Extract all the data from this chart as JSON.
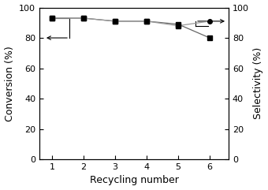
{
  "x": [
    1,
    2,
    3,
    4,
    5,
    6
  ],
  "conversion": [
    93,
    93,
    91,
    91,
    89,
    80
  ],
  "selectivity": [
    93,
    93,
    91,
    91,
    88,
    91
  ],
  "xlabel": "Recycling number",
  "ylabel_left": "Conversion (%)",
  "ylabel_right": "Selectivity (%)",
  "ylim": [
    0,
    100
  ],
  "xlim": [
    0.6,
    6.6
  ],
  "yticks": [
    0,
    20,
    40,
    60,
    80,
    100
  ],
  "xticks": [
    1,
    2,
    3,
    4,
    5,
    6
  ],
  "conv_color": "#666666",
  "sel_color": "#999999",
  "marker_color": "#000000",
  "bg_color": "#ffffff",
  "conv_marker": "s",
  "sel_marker": "o",
  "xlabel_fontsize": 9,
  "ylabel_fontsize": 9,
  "tick_fontsize": 8,
  "linewidth": 0.9,
  "markersize": 4
}
